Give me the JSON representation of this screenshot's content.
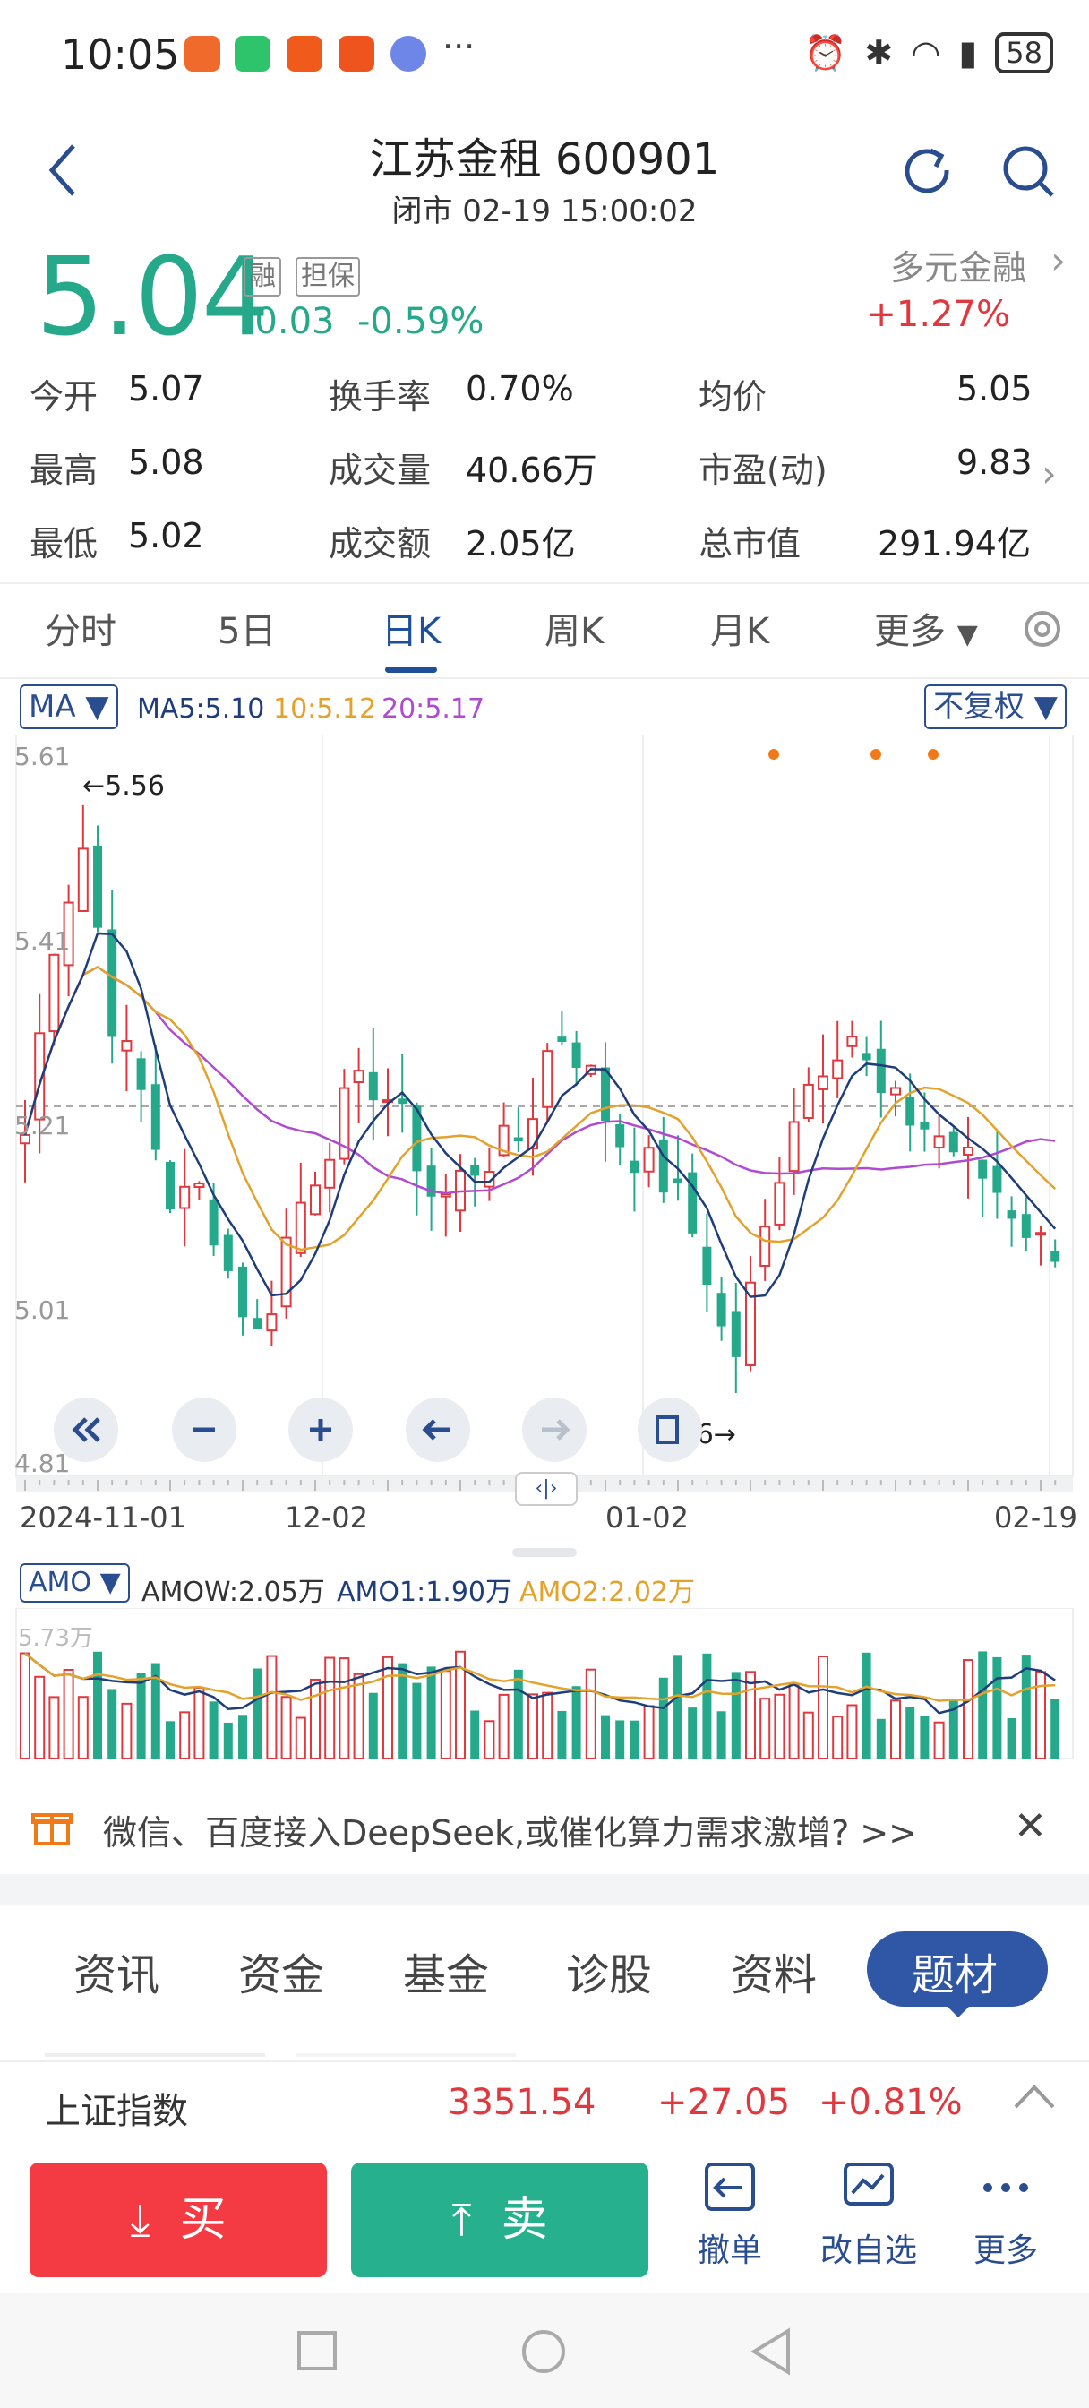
{
  "status_bar": {
    "time": "10:05",
    "battery": "58",
    "more": "···"
  },
  "header": {
    "title": "江苏金租 600901",
    "subtitle": "闭市 02-19 15:00:02"
  },
  "quote": {
    "price": "5.04",
    "tags": [
      "融",
      "担保"
    ],
    "change": "-0.03",
    "change_pct": "-0.59%",
    "sector_name": "多元金融",
    "sector_change": "+1.27%"
  },
  "stats": [
    {
      "label": "今开",
      "value": "5.07"
    },
    {
      "label": "换手率",
      "value": "0.70%"
    },
    {
      "label": "均价",
      "value": "5.05"
    },
    {
      "label": "最高",
      "value": "5.08"
    },
    {
      "label": "成交量",
      "value": "40.66万"
    },
    {
      "label": "市盈(动)",
      "value": "9.83"
    },
    {
      "label": "最低",
      "value": "5.02"
    },
    {
      "label": "成交额",
      "value": "2.05亿"
    },
    {
      "label": "总市值",
      "value": "291.94亿"
    }
  ],
  "tabs": [
    "分时",
    "5日",
    "日K",
    "周K",
    "月K",
    "更多"
  ],
  "active_tab": "日K",
  "chart": {
    "ma_selector": "MA",
    "ma_legend": [
      "MA5:5.10",
      "10:5.12",
      "20:5.17"
    ],
    "adjust_selector": "不复权",
    "high_label": "←5.56",
    "low_label": "4.86→",
    "x_labels": [
      "2024-11-01",
      "12-02",
      "01-02",
      "02-19"
    ],
    "vol_selector": "AMO",
    "vol_legend": [
      "AMOW:2.05万",
      "AMO1:1.90万",
      "AMO2:2.02万"
    ],
    "vol_ylabel": "5.73万",
    "colors": {
      "up": "#e0383e",
      "down": "#26a98b",
      "ma5": "#1f3d7a",
      "ma10": "#e3a22c",
      "ma20": "#b04ad0"
    }
  },
  "chart_data": {
    "type": "candlestick",
    "y_ticks": [
      "5.61",
      "5.41",
      "5.21",
      "5.01",
      "4.81"
    ],
    "ylim": [
      4.81,
      5.61
    ],
    "x_labels": [
      "2024-11-01",
      "12-02",
      "01-02",
      "02-19"
    ],
    "period_high": 5.56,
    "period_low": 4.86,
    "last_close": 5.04
  },
  "news": {
    "text": "微信、百度接入DeepSeek,或催化算力需求激增? >>"
  },
  "bottom_tabs": [
    "资讯",
    "资金",
    "基金",
    "诊股",
    "资料",
    "题材"
  ],
  "index_bar": {
    "name": "上证指数",
    "value": "3351.54",
    "change": "+27.05",
    "pct": "+0.81%"
  },
  "actions": {
    "buy": "买",
    "sell": "卖",
    "cancel": "撤单",
    "edit_watch": "改自选",
    "more": "更多"
  }
}
